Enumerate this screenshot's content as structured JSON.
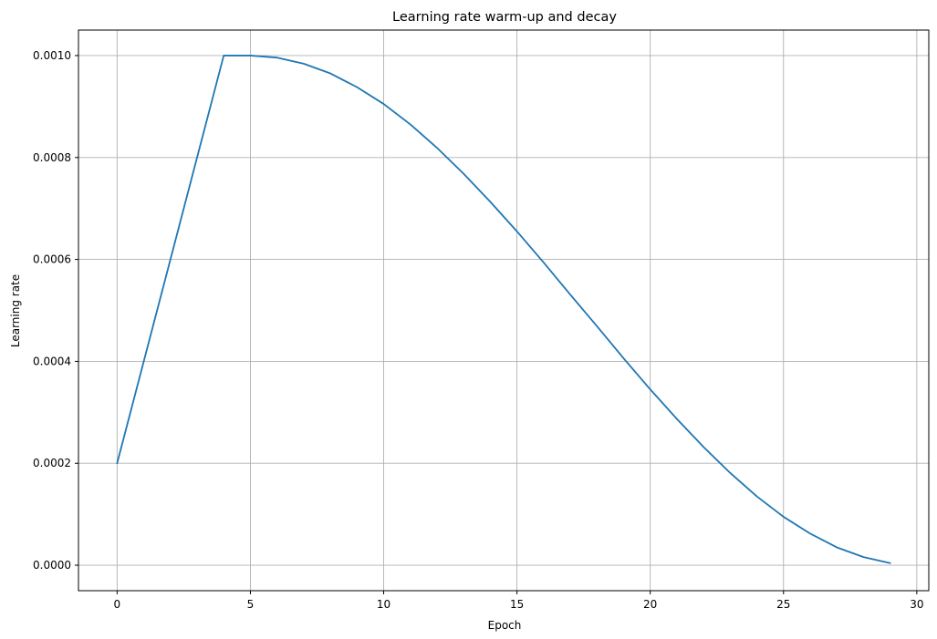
{
  "chart_data": {
    "type": "line",
    "title": "Learning rate warm-up and decay",
    "xlabel": "Epoch",
    "ylabel": "Learning rate",
    "xlim": [
      -1.45,
      30.45
    ],
    "ylim": [
      -5e-05,
      0.00105
    ],
    "x_ticks": [
      0,
      5,
      10,
      15,
      20,
      25,
      30
    ],
    "y_ticks": [
      0.0,
      0.0002,
      0.0004,
      0.0006,
      0.0008,
      0.001
    ],
    "x_tick_labels": [
      "0",
      "5",
      "10",
      "15",
      "20",
      "25",
      "30"
    ],
    "y_tick_labels": [
      "0.0000",
      "0.0002",
      "0.0004",
      "0.0006",
      "0.0008",
      "0.0010"
    ],
    "grid": true,
    "line_color": "#1f77b4",
    "grid_color": "#b0b0b0",
    "x": [
      0,
      1,
      2,
      3,
      4,
      5,
      6,
      7,
      8,
      9,
      10,
      11,
      12,
      13,
      14,
      15,
      16,
      17,
      18,
      19,
      20,
      21,
      22,
      23,
      24,
      25,
      26,
      27,
      28,
      29
    ],
    "y": [
      0.0002,
      0.0004,
      0.0006,
      0.0008,
      0.001,
      0.001,
      0.000996,
      0.000984,
      0.000965,
      0.000938,
      0.000905,
      0.000865,
      0.000819,
      0.000768,
      0.000713,
      0.000655,
      0.000594,
      0.000531,
      0.000469,
      0.000406,
      0.000345,
      0.000287,
      0.000232,
      0.000181,
      0.000135,
      9.5e-05,
      6.2e-05,
      3.5e-05,
      1.6e-05,
      4e-06
    ]
  }
}
